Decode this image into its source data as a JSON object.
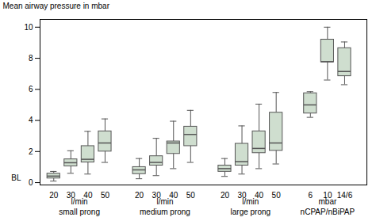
{
  "chart_data": {
    "type": "box",
    "ylabel": "Mean airway pressure in mbar",
    "ylim": [
      -0.15,
      10.5
    ],
    "yticks": [
      0,
      2,
      4,
      6,
      8,
      10
    ],
    "color": "#cfdecf",
    "grid": false,
    "annotations": [
      {
        "text": "BL",
        "y": 0.3
      }
    ],
    "groups": [
      {
        "label": "small prong",
        "sublabel": "l/min",
        "categories": [
          "20",
          "30",
          "40",
          "50"
        ],
        "boxes": [
          {
            "q1": 0.27,
            "median": 0.42,
            "q3": 0.58,
            "whislo": 0.1,
            "whishi": 0.72
          },
          {
            "q1": 1.05,
            "median": 1.28,
            "q3": 1.5,
            "whislo": 0.6,
            "whishi": 2.05
          },
          {
            "q1": 1.3,
            "median": 1.5,
            "q3": 2.35,
            "whislo": 0.55,
            "whishi": 3.3
          },
          {
            "q1": 2.0,
            "median": 2.55,
            "q3": 3.3,
            "whislo": 1.3,
            "whishi": 4.1
          }
        ]
      },
      {
        "label": "medium prong",
        "sublabel": "l/min",
        "categories": [
          "20",
          "30",
          "40",
          "50"
        ],
        "boxes": [
          {
            "q1": 0.55,
            "median": 0.82,
            "q3": 1.0,
            "whislo": 0.25,
            "whishi": 1.55
          },
          {
            "q1": 1.1,
            "median": 1.3,
            "q3": 1.7,
            "whislo": 0.45,
            "whishi": 2.85
          },
          {
            "q1": 1.85,
            "median": 2.55,
            "q3": 2.65,
            "whislo": 0.9,
            "whishi": 3.95
          },
          {
            "q1": 2.35,
            "median": 3.1,
            "q3": 3.6,
            "whislo": 1.3,
            "whishi": 4.65
          }
        ]
      },
      {
        "label": "large prong",
        "sublabel": "l/min",
        "categories": [
          "20",
          "30",
          "40",
          "50"
        ],
        "boxes": [
          {
            "q1": 0.7,
            "median": 0.9,
            "q3": 1.1,
            "whislo": 0.4,
            "whishi": 1.55
          },
          {
            "q1": 1.1,
            "median": 1.35,
            "q3": 2.5,
            "whislo": 0.55,
            "whishi": 3.65
          },
          {
            "q1": 1.9,
            "median": 2.2,
            "q3": 3.3,
            "whislo": 0.9,
            "whishi": 5.05
          },
          {
            "q1": 2.05,
            "median": 2.55,
            "q3": 4.5,
            "whislo": 1.2,
            "whishi": 5.8
          }
        ]
      },
      {
        "label": "nCPAP/nBiPAP",
        "sublabel": "mbar",
        "categories": [
          "6",
          "10",
          "14/6"
        ],
        "boxes": [
          {
            "q1": 4.45,
            "median": 5.0,
            "q3": 5.75,
            "whislo": 4.2,
            "whishi": 5.85
          },
          {
            "q1": 7.75,
            "median": 7.78,
            "q3": 9.2,
            "whislo": 6.6,
            "whishi": 10.0
          },
          {
            "q1": 6.85,
            "median": 7.15,
            "q3": 8.65,
            "whislo": 6.3,
            "whishi": 9.05
          }
        ]
      }
    ]
  }
}
